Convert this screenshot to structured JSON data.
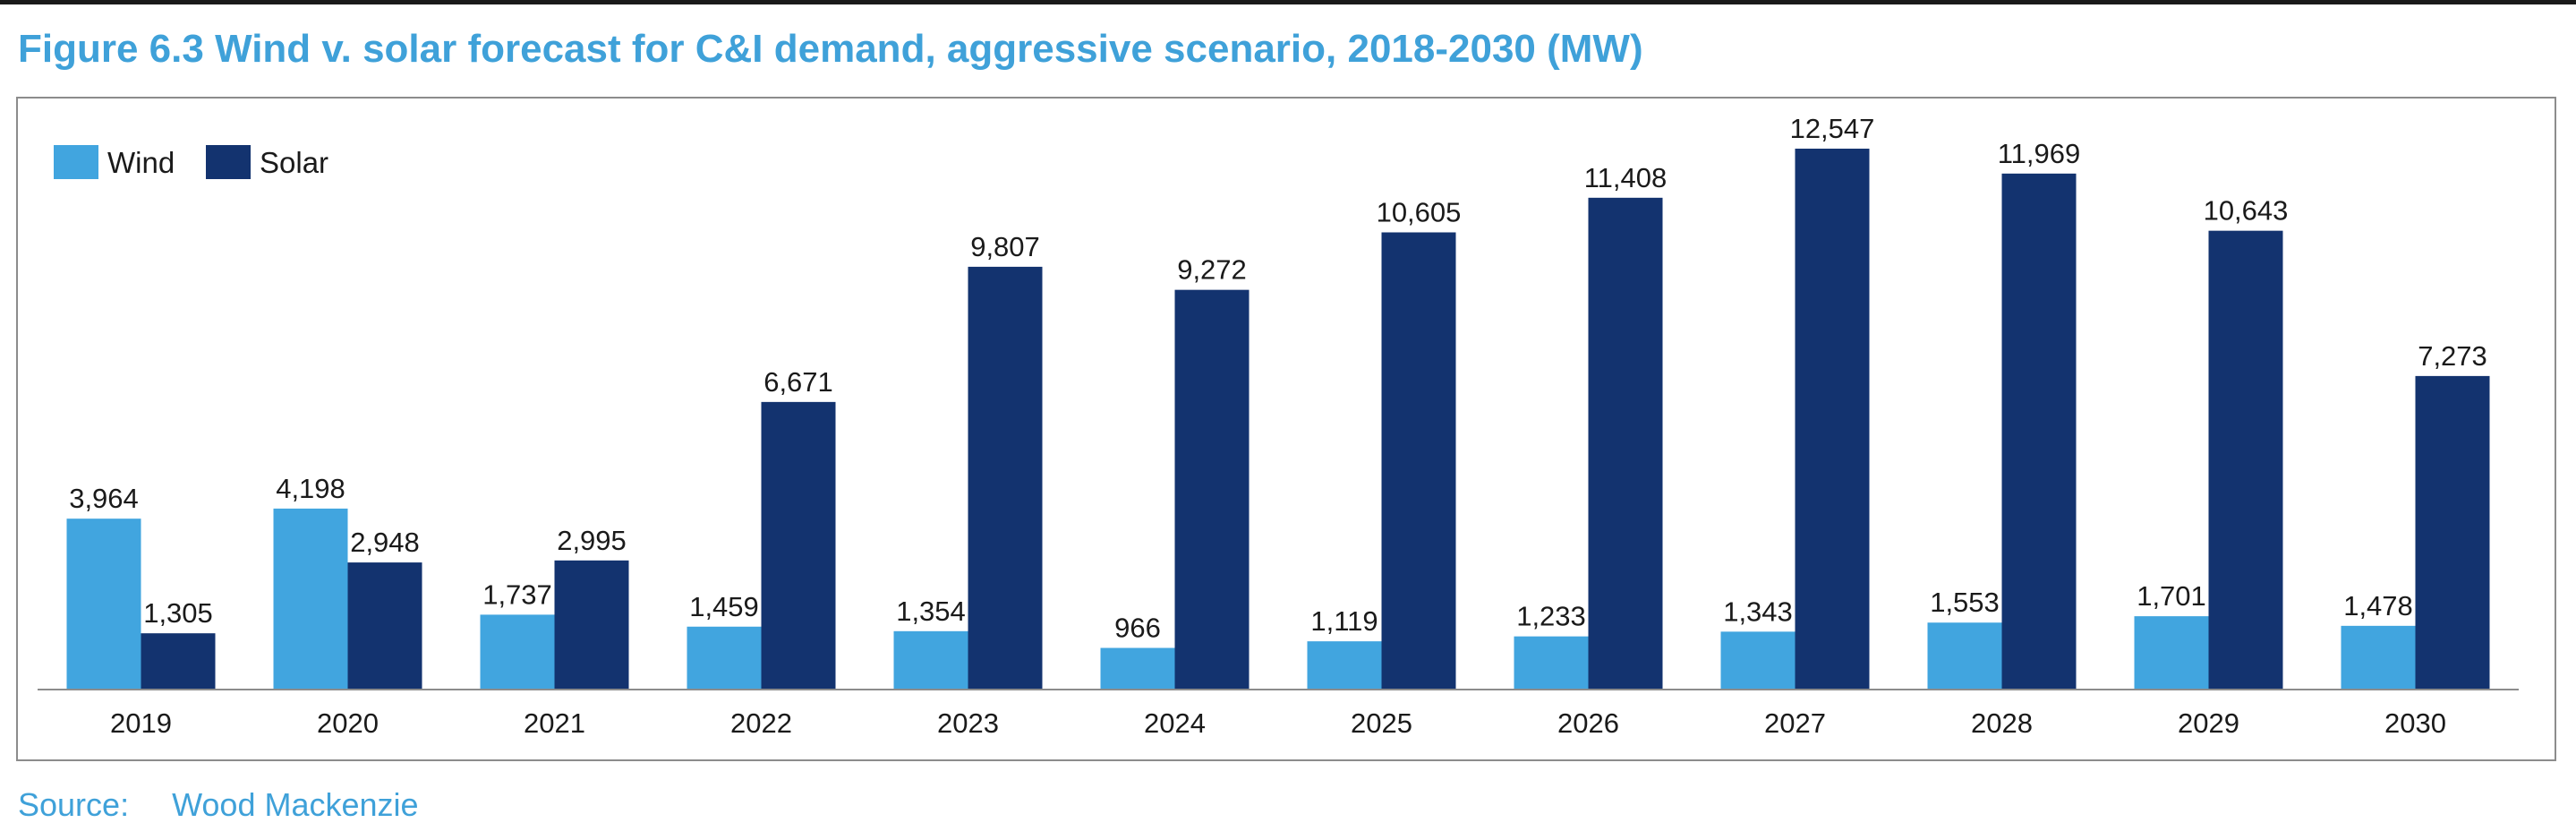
{
  "figure": {
    "title": "Figure 6.3  Wind v. solar forecast for C&I demand, aggressive scenario, 2018-2030 (MW)",
    "source_label": "Source:",
    "source_value": "Wood Mackenzie"
  },
  "colors": {
    "wind": "#41a5df",
    "solar": "#13336f",
    "text": "#1a1a1a",
    "title": "#3fa1d9",
    "axis": "#8c8c8c"
  },
  "chart_data": {
    "type": "bar",
    "categories": [
      "2019",
      "2020",
      "2021",
      "2022",
      "2023",
      "2024",
      "2025",
      "2026",
      "2027",
      "2028",
      "2029",
      "2030"
    ],
    "series": [
      {
        "name": "Wind",
        "values": [
          3964,
          4198,
          1737,
          1459,
          1354,
          966,
          1119,
          1233,
          1343,
          1553,
          1701,
          1478
        ]
      },
      {
        "name": "Solar",
        "values": [
          1305,
          2948,
          2995,
          6671,
          9807,
          9272,
          10605,
          11408,
          12547,
          11969,
          10643,
          7273
        ]
      }
    ],
    "data_labels": {
      "Wind": [
        "3,964",
        "4,198",
        "1,737",
        "1,459",
        "1,354",
        "966",
        "1,119",
        "1,233",
        "1,343",
        "1,553",
        "1,701",
        "1,478"
      ],
      "Solar": [
        "1,305",
        "2,948",
        "2,995",
        "6,671",
        "9,807",
        "9,272",
        "10,605",
        "11,408",
        "12,547",
        "11,969",
        "10,643",
        "7,273"
      ]
    },
    "ylim": [
      0,
      12547
    ],
    "grid": false,
    "legend": "top-left",
    "xlabel": "",
    "ylabel": ""
  }
}
